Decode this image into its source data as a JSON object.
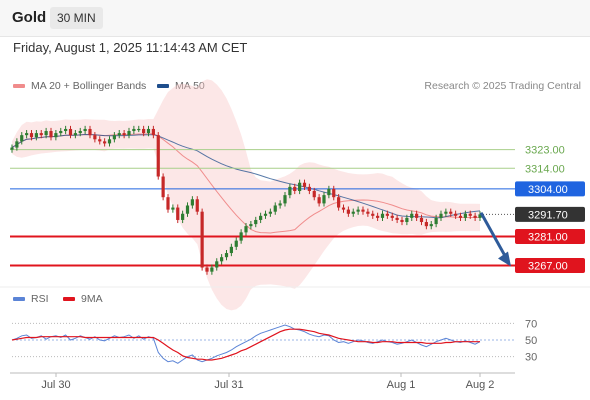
{
  "header": {
    "symbol": "Gold",
    "timeframe": "30 MIN"
  },
  "datetime": "Friday, August 1, 2025 11:14:43 AM CET",
  "legend": {
    "ma20": {
      "label": "MA 20 + Bollinger Bands",
      "color": "#f08c8c"
    },
    "ma50": {
      "label": "MA 50",
      "color": "#1f4e8c"
    }
  },
  "credit": "Research © 2025 Trading Central",
  "rsi_legend": {
    "rsi": {
      "label": "RSI",
      "color": "#5b84d6"
    },
    "ma9": {
      "label": "9MA",
      "color": "#e0141e"
    }
  },
  "colors": {
    "up": "#2e7d32",
    "down": "#c62828",
    "level_green": "#a8cf8a",
    "pivot_blue": "#1f64e0",
    "support_red": "#e0141e",
    "arrow": "#2e5b9a"
  },
  "chart_data": [
    {
      "type": "candlestick",
      "y_range": [
        3259,
        3347
      ],
      "x_labels": [
        "Jul 30",
        "Jul 31",
        "Aug 1",
        "Aug 2"
      ],
      "levels": [
        {
          "label": "3323.00",
          "value": 3323.0,
          "kind": "resistance"
        },
        {
          "label": "3314.00",
          "value": 3314.0,
          "kind": "resistance"
        },
        {
          "label": "3304.00",
          "value": 3304.0,
          "kind": "pivot"
        },
        {
          "label": "3281.00",
          "value": 3281.0,
          "kind": "support"
        },
        {
          "label": "3267.00",
          "value": 3267.0,
          "kind": "support"
        }
      ],
      "current_price": {
        "label": "3291.70",
        "value": 3291.7
      },
      "forecast_arrow": {
        "from": 3292.5,
        "to": 3267.0
      },
      "close_series": [
        3324,
        3327,
        3330,
        3331,
        3329,
        3331,
        3330,
        3332,
        3329,
        3331,
        3332,
        3333,
        3330,
        3331,
        3332,
        3333,
        3330,
        3328,
        3327,
        3326,
        3328,
        3330,
        3331,
        3330,
        3332,
        3333,
        3333,
        3331,
        3333,
        3330,
        3310,
        3300,
        3294,
        3295,
        3289,
        3292,
        3296,
        3299,
        3293,
        3266,
        3264,
        3266,
        3269,
        3271,
        3273,
        3276,
        3279,
        3283,
        3286,
        3287,
        3289,
        3291,
        3292,
        3293,
        3296,
        3297,
        3301,
        3305,
        3303,
        3307,
        3305,
        3303,
        3300,
        3297,
        3301,
        3304,
        3300,
        3295,
        3294,
        3292,
        3293,
        3294,
        3293,
        3292,
        3291,
        3290,
        3292,
        3291,
        3290,
        3289,
        3288,
        3290,
        3292,
        3290,
        3288,
        3286,
        3287,
        3290,
        3292,
        3293,
        3292,
        3291,
        3290,
        3292,
        3291,
        3290,
        3291.7
      ]
    },
    {
      "type": "line",
      "title": "RSI",
      "y_ticks": [
        70,
        50,
        30
      ],
      "y_range": [
        20,
        80
      ],
      "series": [
        {
          "name": "RSI",
          "values": [
            50,
            52,
            55,
            56,
            52,
            53,
            55,
            51,
            54,
            55,
            53,
            56,
            50,
            52,
            55,
            53,
            51,
            54,
            50,
            49,
            52,
            55,
            53,
            54,
            56,
            52,
            55,
            51,
            54,
            52,
            35,
            28,
            24,
            25,
            22,
            26,
            30,
            32,
            26,
            24,
            26,
            28,
            31,
            33,
            35,
            38,
            42,
            45,
            48,
            51,
            55,
            58,
            60,
            62,
            64,
            66,
            68,
            66,
            63,
            62,
            60,
            57,
            55,
            54,
            56,
            55,
            50,
            47,
            48,
            46,
            48,
            50,
            49,
            47,
            46,
            48,
            50,
            48,
            47,
            45,
            46,
            48,
            50,
            47,
            44,
            42,
            45,
            48,
            50,
            52,
            50,
            48,
            47,
            49,
            47,
            45,
            48
          ]
        },
        {
          "name": "9MA",
          "values": [
            50,
            51,
            52,
            53,
            53,
            53,
            54,
            54,
            54,
            54,
            54,
            54,
            54,
            54,
            54,
            53,
            53,
            53,
            53,
            53,
            53,
            53,
            53,
            53,
            53,
            53,
            53,
            53,
            53,
            53,
            50,
            46,
            42,
            38,
            35,
            31,
            29,
            28,
            27,
            27,
            26,
            26,
            27,
            28,
            30,
            32,
            34,
            37,
            39,
            42,
            45,
            48,
            51,
            54,
            57,
            60,
            62,
            63,
            63,
            63,
            62,
            61,
            60,
            58,
            57,
            56,
            54,
            52,
            51,
            50,
            49,
            48,
            48,
            48,
            47,
            47,
            48,
            48,
            48,
            47,
            47,
            47,
            47,
            47,
            47,
            46,
            46,
            46,
            46,
            47,
            47,
            48,
            48,
            48,
            48,
            48,
            48
          ]
        }
      ]
    }
  ]
}
